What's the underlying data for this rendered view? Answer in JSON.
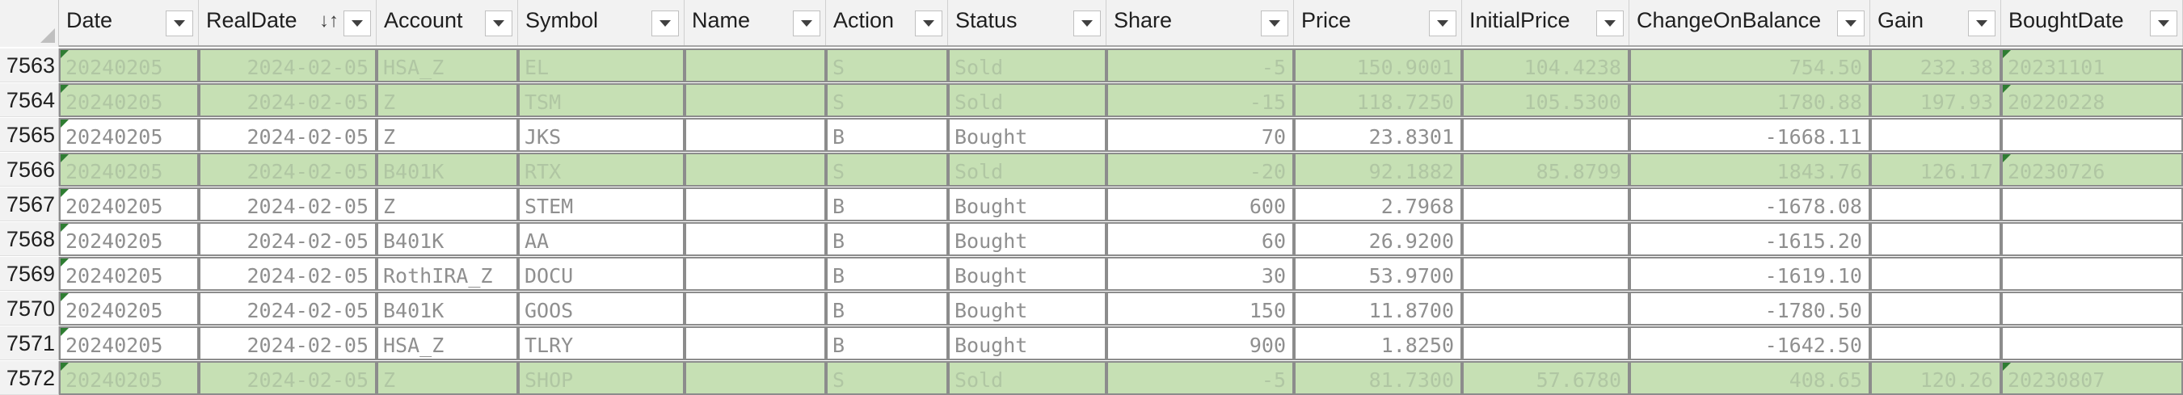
{
  "columns": [
    {
      "key": "date",
      "label": "Date",
      "align": "left",
      "sort": ""
    },
    {
      "key": "real_date",
      "label": "RealDate",
      "align": "right",
      "sort": "↓↑"
    },
    {
      "key": "account",
      "label": "Account",
      "align": "left",
      "sort": ""
    },
    {
      "key": "symbol",
      "label": "Symbol",
      "align": "left",
      "sort": ""
    },
    {
      "key": "name",
      "label": "Name",
      "align": "left",
      "sort": ""
    },
    {
      "key": "action",
      "label": "Action",
      "align": "left",
      "sort": ""
    },
    {
      "key": "status",
      "label": "Status",
      "align": "left",
      "sort": ""
    },
    {
      "key": "share",
      "label": "Share",
      "align": "right",
      "sort": ""
    },
    {
      "key": "price",
      "label": "Price",
      "align": "right",
      "sort": ""
    },
    {
      "key": "initial_price",
      "label": "InitialPrice",
      "align": "right",
      "sort": ""
    },
    {
      "key": "change_on_balance",
      "label": "ChangeOnBalance",
      "align": "right",
      "sort": ""
    },
    {
      "key": "gain",
      "label": "Gain",
      "align": "right",
      "sort": ""
    },
    {
      "key": "bought_date",
      "label": "BoughtDate",
      "align": "left",
      "sort": ""
    }
  ],
  "rows": [
    {
      "num": "7563",
      "sold": true,
      "flags": [
        "date",
        "bought_date"
      ],
      "date": "20240205",
      "real_date": "2024-02-05",
      "account": "HSA_Z",
      "symbol": "EL",
      "name": "",
      "action": "S",
      "status": "Sold",
      "share": "-5",
      "price": "150.9001",
      "initial_price": "104.4238",
      "change_on_balance": "754.50",
      "gain": "232.38",
      "bought_date": "20231101"
    },
    {
      "num": "7564",
      "sold": true,
      "flags": [
        "date",
        "bought_date"
      ],
      "date": "20240205",
      "real_date": "2024-02-05",
      "account": "Z",
      "symbol": "TSM",
      "name": "",
      "action": "S",
      "status": "Sold",
      "share": "-15",
      "price": "118.7250",
      "initial_price": "105.5300",
      "change_on_balance": "1780.88",
      "gain": "197.93",
      "bought_date": "20220228"
    },
    {
      "num": "7565",
      "sold": false,
      "flags": [
        "date"
      ],
      "date": "20240205",
      "real_date": "2024-02-05",
      "account": "Z",
      "symbol": "JKS",
      "name": "",
      "action": "B",
      "status": "Bought",
      "share": "70",
      "price": "23.8301",
      "initial_price": "",
      "change_on_balance": "-1668.11",
      "gain": "",
      "bought_date": ""
    },
    {
      "num": "7566",
      "sold": true,
      "flags": [
        "date",
        "bought_date"
      ],
      "date": "20240205",
      "real_date": "2024-02-05",
      "account": "B401K",
      "symbol": "RTX",
      "name": "",
      "action": "S",
      "status": "Sold",
      "share": "-20",
      "price": "92.1882",
      "initial_price": "85.8799",
      "change_on_balance": "1843.76",
      "gain": "126.17",
      "bought_date": "20230726"
    },
    {
      "num": "7567",
      "sold": false,
      "flags": [
        "date"
      ],
      "date": "20240205",
      "real_date": "2024-02-05",
      "account": "Z",
      "symbol": "STEM",
      "name": "",
      "action": "B",
      "status": "Bought",
      "share": "600",
      "price": "2.7968",
      "initial_price": "",
      "change_on_balance": "-1678.08",
      "gain": "",
      "bought_date": ""
    },
    {
      "num": "7568",
      "sold": false,
      "flags": [
        "date"
      ],
      "date": "20240205",
      "real_date": "2024-02-05",
      "account": "B401K",
      "symbol": "AA",
      "name": "",
      "action": "B",
      "status": "Bought",
      "share": "60",
      "price": "26.9200",
      "initial_price": "",
      "change_on_balance": "-1615.20",
      "gain": "",
      "bought_date": ""
    },
    {
      "num": "7569",
      "sold": false,
      "flags": [
        "date"
      ],
      "date": "20240205",
      "real_date": "2024-02-05",
      "account": "RothIRA_Z",
      "symbol": "DOCU",
      "name": "",
      "action": "B",
      "status": "Bought",
      "share": "30",
      "price": "53.9700",
      "initial_price": "",
      "change_on_balance": "-1619.10",
      "gain": "",
      "bought_date": ""
    },
    {
      "num": "7570",
      "sold": false,
      "flags": [
        "date"
      ],
      "date": "20240205",
      "real_date": "2024-02-05",
      "account": "B401K",
      "symbol": "GOOS",
      "name": "",
      "action": "B",
      "status": "Bought",
      "share": "150",
      "price": "11.8700",
      "initial_price": "",
      "change_on_balance": "-1780.50",
      "gain": "",
      "bought_date": ""
    },
    {
      "num": "7571",
      "sold": false,
      "flags": [
        "date"
      ],
      "date": "20240205",
      "real_date": "2024-02-05",
      "account": "HSA_Z",
      "symbol": "TLRY",
      "name": "",
      "action": "B",
      "status": "Bought",
      "share": "900",
      "price": "1.8250",
      "initial_price": "",
      "change_on_balance": "-1642.50",
      "gain": "",
      "bought_date": ""
    },
    {
      "num": "7572",
      "sold": true,
      "flags": [
        "date",
        "bought_date"
      ],
      "date": "20240205",
      "real_date": "2024-02-05",
      "account": "Z",
      "symbol": "SHOP",
      "name": "",
      "action": "S",
      "status": "Sold",
      "share": "-5",
      "price": "81.7300",
      "initial_price": "57.6780",
      "change_on_balance": "408.65",
      "gain": "120.26",
      "bought_date": "20230807"
    }
  ],
  "colors": {
    "sold_fill": "#c6e0b4",
    "bought_fill": "#ffffff",
    "header_fill": "#f2f2f2",
    "cell_border": "#8c8c8c",
    "comment_flag": "#2e7d32"
  },
  "icons": {
    "filter_button": "chevron-down-icon",
    "sort_indicator": "sort-arrows-icon",
    "select_all": "select-all-triangle-icon",
    "cell_note": "cell-flag-icon"
  }
}
